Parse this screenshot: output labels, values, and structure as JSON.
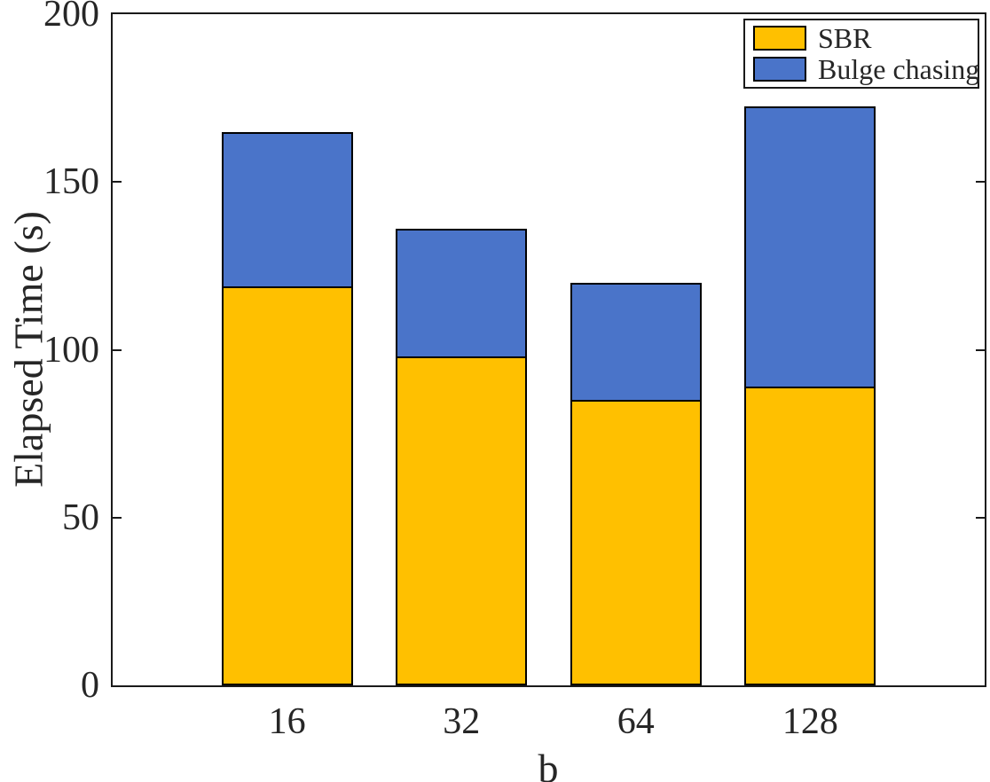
{
  "chart_data": {
    "type": "bar",
    "stacked": true,
    "title": "",
    "xlabel": "b",
    "ylabel": "Elapsed Time (s)",
    "categories": [
      "16",
      "32",
      "64",
      "128"
    ],
    "series": [
      {
        "name": "SBR",
        "color": "#FFC000",
        "values": [
          119,
          98,
          85,
          89
        ]
      },
      {
        "name": "Bulge chasing",
        "color": "#4A74C9",
        "values": [
          46,
          38,
          35,
          83.5
        ]
      }
    ],
    "ylim": [
      0,
      200
    ],
    "yticks": [
      0,
      50,
      100,
      150,
      200
    ],
    "grid": false,
    "legend_position": "top-right",
    "bar_edge_color": "#000000",
    "axis_color": "#1a1a1a"
  }
}
